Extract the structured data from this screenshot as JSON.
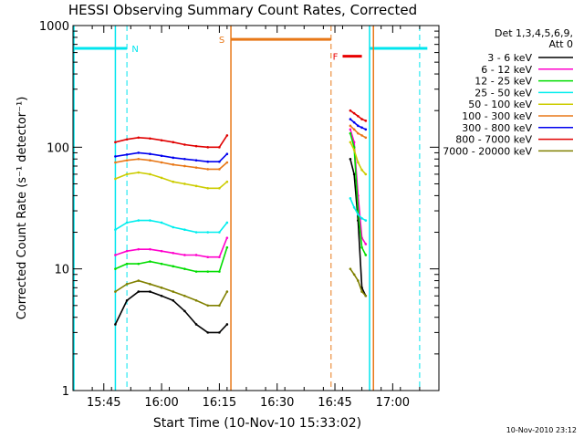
{
  "colors": {
    "background": "#ffffff",
    "axes": "#000000",
    "flag_cyan": "#00e5ee",
    "flag_orange": "#e87818",
    "flag_red": "#e80000"
  },
  "chart_data": {
    "type": "line",
    "title": "HESSI Observing Summary Count Rates, Corrected",
    "xlabel": "Start Time (10-Nov-10 15:33:02)",
    "ylabel": "Corrected Count Rate (s⁻¹ detector⁻¹)",
    "y_scale": "log",
    "ylim": [
      1,
      1000
    ],
    "xlim": [
      "15:37",
      "17:12"
    ],
    "x_ticks": [
      "15:45",
      "16:00",
      "16:15",
      "16:30",
      "16:45",
      "17:00"
    ],
    "y_ticks": [
      "1",
      "10",
      "100",
      "1000"
    ],
    "legend_title": [
      "Det 1,3,4,5,6,9,",
      "Att 0"
    ],
    "legend_position": "right",
    "footer": "10-Nov-2010 23:12",
    "flags": [
      {
        "label": "N",
        "color": "#00e5ee",
        "bar": [
          "15:37",
          "15:51"
        ],
        "y": 650,
        "bar_start_line": "15:37",
        "solid_lines": [
          "15:48",
          "16:54"
        ],
        "dashed_lines": [
          "15:51",
          "17:07"
        ],
        "bar2": [
          "16:54",
          "17:09"
        ]
      },
      {
        "label": "S",
        "color": "#e87818",
        "bar": [
          "16:18",
          "16:44"
        ],
        "y": 770,
        "solid_lines": [
          "16:18",
          "16:55"
        ],
        "dashed_lines": [
          "16:44"
        ]
      },
      {
        "label": "F",
        "color": "#e80000",
        "bar": [
          "16:47",
          "16:52"
        ],
        "y": 560
      }
    ],
    "segment_1": [
      "15:48",
      "16:18"
    ],
    "segment_2": [
      "16:49",
      "16:53"
    ],
    "series": [
      {
        "name": "3 - 6 keV",
        "color": "#000000",
        "x": [
          "15:48",
          "15:51",
          "15:54",
          "15:57",
          "16:00",
          "16:03",
          "16:06",
          "16:09",
          "16:12",
          "16:15",
          "16:17",
          "16:49",
          "16:50",
          "16:51",
          "16:52",
          "16:53"
        ],
        "y": [
          3.5,
          5.5,
          6.5,
          6.5,
          6,
          5.5,
          4.5,
          3.5,
          3,
          3,
          3.5,
          80,
          60,
          25,
          7,
          6
        ]
      },
      {
        "name": "6 - 12 keV",
        "color": "#ff00cc",
        "x": [
          "15:48",
          "15:51",
          "15:54",
          "15:57",
          "16:00",
          "16:03",
          "16:06",
          "16:09",
          "16:12",
          "16:15",
          "16:17",
          "16:49",
          "16:50",
          "16:51",
          "16:52",
          "16:53"
        ],
        "y": [
          13,
          14,
          14.5,
          14.5,
          14,
          13.5,
          13,
          13,
          12.5,
          12.5,
          18,
          140,
          110,
          40,
          18,
          16
        ]
      },
      {
        "name": "12 - 25 keV",
        "color": "#00dd00",
        "x": [
          "15:48",
          "15:51",
          "15:54",
          "15:57",
          "16:00",
          "16:03",
          "16:06",
          "16:09",
          "16:12",
          "16:15",
          "16:17",
          "16:49",
          "16:50",
          "16:51",
          "16:52",
          "16:53"
        ],
        "y": [
          10,
          11,
          11,
          11.5,
          11,
          10.5,
          10,
          9.5,
          9.5,
          9.5,
          15,
          130,
          100,
          30,
          15,
          13
        ]
      },
      {
        "name": "25 - 50 keV",
        "color": "#00eeee",
        "x": [
          "15:48",
          "15:51",
          "15:54",
          "15:57",
          "16:00",
          "16:03",
          "16:06",
          "16:09",
          "16:12",
          "16:15",
          "16:17",
          "16:49",
          "16:50",
          "16:51",
          "16:52",
          "16:53"
        ],
        "y": [
          21,
          24,
          25,
          25,
          24,
          22,
          21,
          20,
          20,
          20,
          24,
          38,
          32,
          28,
          26,
          25
        ]
      },
      {
        "name": "50 - 100 keV",
        "color": "#cccc00",
        "x": [
          "15:48",
          "15:51",
          "15:54",
          "15:57",
          "16:00",
          "16:03",
          "16:06",
          "16:09",
          "16:12",
          "16:15",
          "16:17",
          "16:49",
          "16:50",
          "16:51",
          "16:52",
          "16:53"
        ],
        "y": [
          55,
          60,
          62,
          60,
          56,
          52,
          50,
          48,
          46,
          46,
          52,
          110,
          95,
          75,
          65,
          60
        ]
      },
      {
        "name": "100 - 300 keV",
        "color": "#e87818",
        "x": [
          "15:48",
          "15:51",
          "15:54",
          "15:57",
          "16:00",
          "16:03",
          "16:06",
          "16:09",
          "16:12",
          "16:15",
          "16:17",
          "16:49",
          "16:50",
          "16:51",
          "16:52",
          "16:53"
        ],
        "y": [
          75,
          78,
          80,
          78,
          75,
          72,
          70,
          68,
          66,
          66,
          75,
          150,
          140,
          130,
          125,
          120
        ]
      },
      {
        "name": "300 - 800 keV",
        "color": "#0000ee",
        "x": [
          "15:48",
          "15:51",
          "15:54",
          "15:57",
          "16:00",
          "16:03",
          "16:06",
          "16:09",
          "16:12",
          "16:15",
          "16:17",
          "16:49",
          "16:50",
          "16:51",
          "16:52",
          "16:53"
        ],
        "y": [
          84,
          87,
          90,
          88,
          85,
          82,
          80,
          78,
          76,
          76,
          88,
          170,
          160,
          150,
          145,
          140
        ]
      },
      {
        "name": "800 - 7000 keV",
        "color": "#e00000",
        "x": [
          "15:48",
          "15:51",
          "15:54",
          "15:57",
          "16:00",
          "16:03",
          "16:06",
          "16:09",
          "16:12",
          "16:15",
          "16:17",
          "16:49",
          "16:50",
          "16:51",
          "16:52",
          "16:53"
        ],
        "y": [
          110,
          116,
          120,
          118,
          114,
          110,
          105,
          102,
          100,
          100,
          125,
          200,
          190,
          180,
          170,
          165
        ]
      },
      {
        "name": "7000 - 20000 keV",
        "color": "#808000",
        "x": [
          "15:48",
          "15:51",
          "15:54",
          "15:57",
          "16:00",
          "16:03",
          "16:06",
          "16:09",
          "16:12",
          "16:15",
          "16:17",
          "16:49",
          "16:50",
          "16:51",
          "16:52",
          "16:53"
        ],
        "y": [
          6.5,
          7.5,
          8,
          7.5,
          7,
          6.5,
          6,
          5.5,
          5,
          5,
          6.5,
          10,
          9,
          8,
          6.5,
          6
        ]
      }
    ]
  }
}
